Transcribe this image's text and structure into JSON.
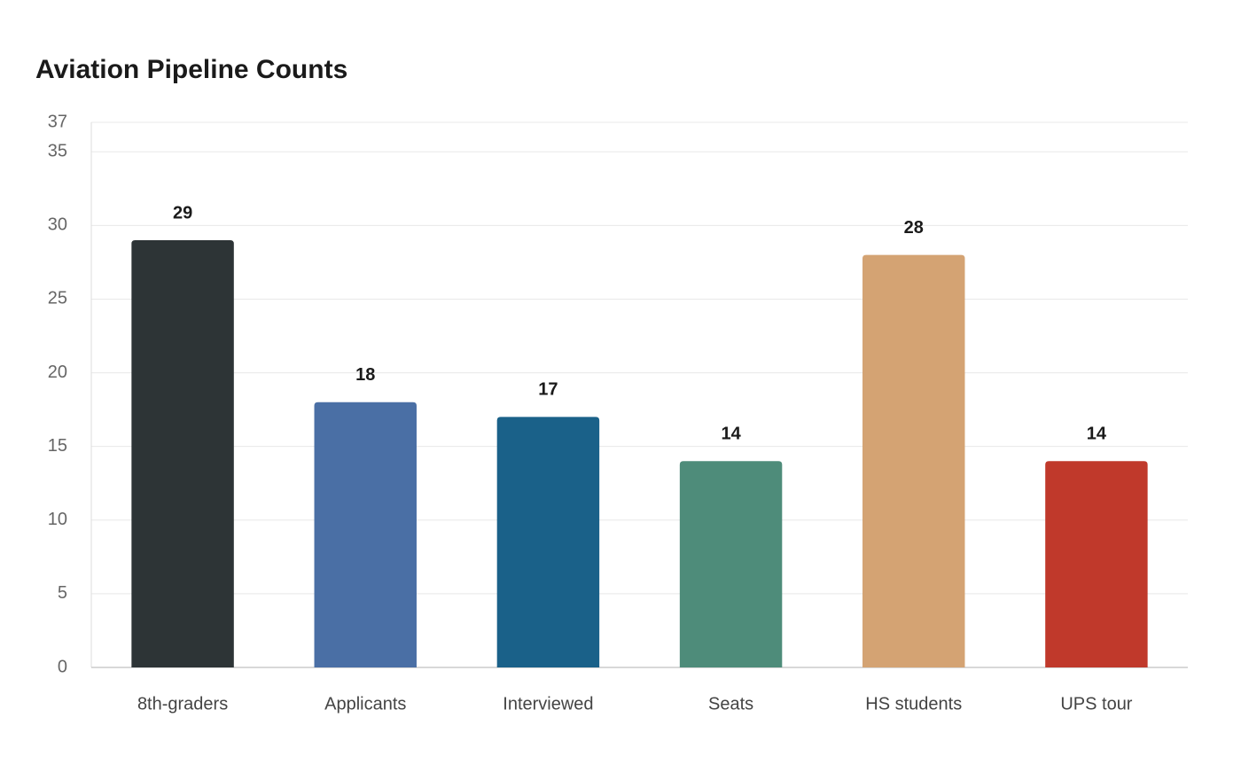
{
  "chart_data": {
    "type": "bar",
    "title": "Aviation Pipeline Counts",
    "categories": [
      "8th-graders",
      "Applicants",
      "Interviewed",
      "Seats",
      "HS students",
      "UPS tour"
    ],
    "values": [
      29,
      18,
      17,
      14,
      28,
      14
    ],
    "colors": [
      "#2d3436",
      "#4a6fa5",
      "#1a6189",
      "#4e8c7a",
      "#d4a373",
      "#c0392b"
    ],
    "ylim": [
      0,
      37
    ],
    "yticks": [
      0,
      5,
      10,
      15,
      20,
      25,
      30,
      35,
      37
    ],
    "grid": true
  }
}
